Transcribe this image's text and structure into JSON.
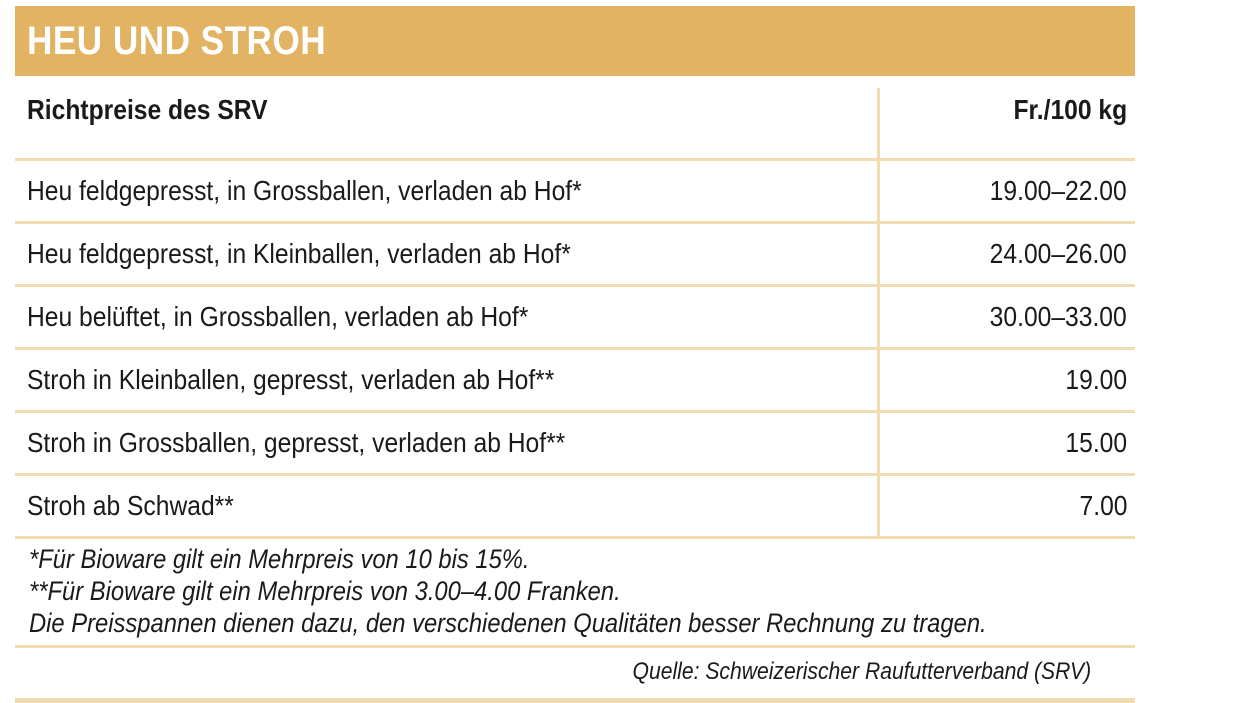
{
  "title": "HEU UND STROH",
  "table": {
    "header": {
      "label": "Richtpreise des SRV",
      "unit": "Fr./100 kg"
    },
    "rows": [
      {
        "label": "Heu feldgepresst, in Grossballen, verladen ab Hof*",
        "value": "19.00–22.00"
      },
      {
        "label": "Heu feldgepresst, in Kleinballen, verladen ab Hof*",
        "value": "24.00–26.00"
      },
      {
        "label": "Heu belüftet, in Grossballen, verladen ab Hof*",
        "value": "30.00–33.00"
      },
      {
        "label": "Stroh in Kleinballen, gepresst, verladen ab Hof**",
        "value": "19.00"
      },
      {
        "label": "Stroh in Grossballen, gepresst, verladen ab Hof**",
        "value": "15.00"
      },
      {
        "label": "Stroh ab Schwad**",
        "value": "7.00"
      }
    ]
  },
  "notes": [
    "*Für Bioware gilt ein Mehrpreis von 10 bis 15%.",
    "**Für Bioware gilt ein Mehrpreis von 3.00–4.00 Franken.",
    "Die Preisspannen dienen dazu, den verschiedenen Qualitäten besser Rechnung zu tragen."
  ],
  "source": "Quelle: Schweizerischer Raufutterverband (SRV)",
  "colors": {
    "accent": "#e2b362",
    "rule": "#f0dcb0",
    "title_text": "#ffffff"
  }
}
